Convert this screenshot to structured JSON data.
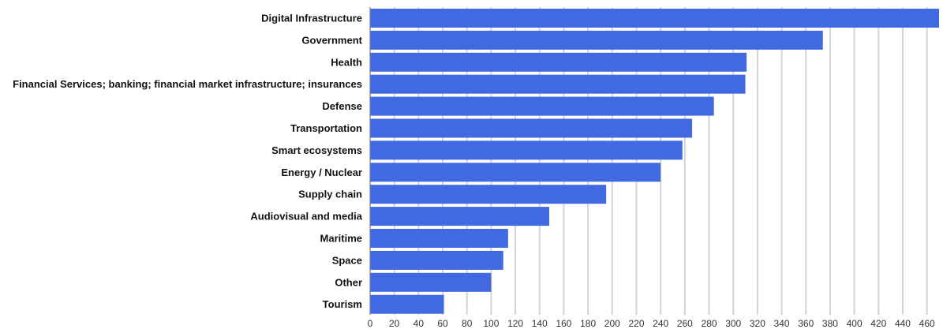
{
  "chart_data": {
    "type": "bar",
    "orientation": "horizontal",
    "categories": [
      "Digital Infrastructure",
      "Government",
      "Health",
      "Financial Services; banking; financial market infrastructure; insurances",
      "Defense",
      "Transportation",
      "Smart ecosystems",
      "Energy / Nuclear",
      "Supply chain",
      "Audiovisual and media",
      "Maritime",
      "Space",
      "Other",
      "Tourism"
    ],
    "values": [
      470,
      374,
      311,
      310,
      284,
      266,
      258,
      240,
      195,
      148,
      114,
      110,
      100,
      61
    ],
    "xlim": [
      0,
      470
    ],
    "xticks": [
      0,
      20,
      40,
      60,
      80,
      100,
      120,
      140,
      160,
      180,
      200,
      220,
      240,
      260,
      280,
      300,
      320,
      340,
      360,
      380,
      400,
      420,
      440,
      460
    ],
    "title": "",
    "xlabel": "",
    "ylabel": "",
    "grid": true,
    "legend": "none",
    "bar_color": "#4169e1",
    "grid_color": "#d4d4d4"
  }
}
